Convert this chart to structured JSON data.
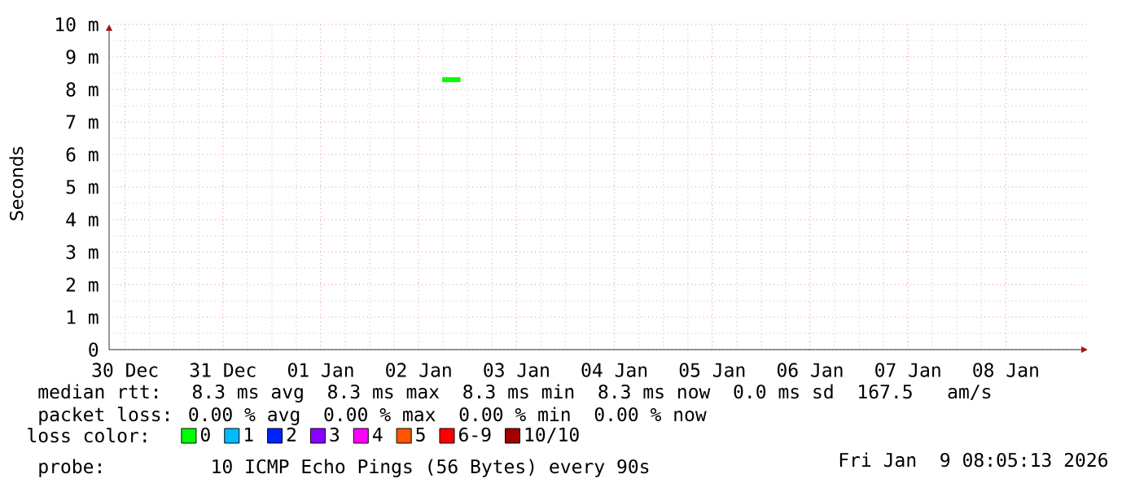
{
  "chart_data": {
    "type": "line",
    "ylabel": "Seconds",
    "legend_title": "loss color:",
    "legend": "bottom left",
    "grid": true,
    "line_style": "solid",
    "xlim": [
      "2025-12-30T08:05",
      "2026-01-09T08:05"
    ],
    "xticks": [
      {
        "value": "2025-12-30T12:00",
        "label": "30 Dec"
      },
      {
        "value": "2025-12-31T12:00",
        "label": "31 Dec"
      },
      {
        "value": "2026-01-01T12:00",
        "label": "01 Jan"
      },
      {
        "value": "2026-01-02T12:00",
        "label": "02 Jan"
      },
      {
        "value": "2026-01-03T12:00",
        "label": "03 Jan"
      },
      {
        "value": "2026-01-04T12:00",
        "label": "04 Jan"
      },
      {
        "value": "2026-01-05T12:00",
        "label": "05 Jan"
      },
      {
        "value": "2026-01-06T12:00",
        "label": "06 Jan"
      },
      {
        "value": "2026-01-07T12:00",
        "label": "07 Jan"
      },
      {
        "value": "2026-01-08T12:00",
        "label": "08 Jan"
      }
    ],
    "ylim": [
      0,
      10
    ],
    "yticks": [
      0,
      {
        "value": 1,
        "label": "1 m"
      },
      {
        "value": 2,
        "label": "2 m"
      },
      {
        "value": 3,
        "label": "3 m"
      },
      {
        "value": 4,
        "label": "4 m"
      },
      {
        "value": 5,
        "label": "5 m"
      },
      {
        "value": 6,
        "label": "6 m"
      },
      {
        "value": 7,
        "label": "7 m"
      },
      {
        "value": 8,
        "label": "8 m"
      },
      {
        "value": 9,
        "label": "9 m"
      },
      {
        "value": 10,
        "label": "10 m"
      }
    ],
    "x": [
      "2026-01-02T17:45",
      "2026-01-02T19:15",
      "2026-01-02T20:45",
      "2026-01-02T22:15"
    ],
    "series": [
      {
        "name": "0",
        "color": "#00ff00",
        "values": [
          8.3,
          8.3,
          8.3,
          8.3
        ]
      },
      {
        "name": "1",
        "color": "#00bbff",
        "values": [
          null,
          null,
          null,
          null
        ]
      },
      {
        "name": "2",
        "color": "#0022ff",
        "values": [
          null,
          null,
          null,
          null
        ]
      },
      {
        "name": "3",
        "color": "#8a00ff",
        "values": [
          null,
          null,
          null,
          null
        ]
      },
      {
        "name": "4",
        "color": "#ff00ff",
        "values": [
          null,
          null,
          null,
          null
        ]
      },
      {
        "name": "5",
        "color": "#ff5500",
        "values": [
          null,
          null,
          null,
          null
        ]
      },
      {
        "name": "6-9",
        "color": "#ff0000",
        "values": [
          null,
          null,
          null,
          null
        ]
      },
      {
        "name": "10/10",
        "color": "#a10000",
        "values": [
          null,
          null,
          null,
          null
        ]
      }
    ],
    "annotations": [
      "median rtt:  8.3 ms avg  8.3 ms max  8.3 ms min  8.3 ms now  0.0 ms sd  167.5   am/s",
      "packet loss: 0.00 % avg  0.00 % max  0.00 % min  0.00 % now",
      "probe:       10 ICMP Echo Pings (56 Bytes) every 90s",
      "Fri Jan  9 08:05:13 2026"
    ]
  }
}
